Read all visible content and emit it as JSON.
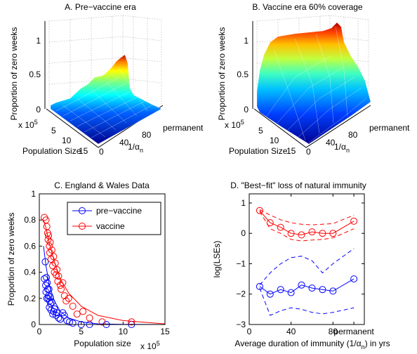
{
  "chart_data": [
    {
      "type": "surface",
      "title": "A. Pre−vaccine era",
      "zlabel": "Proportion of zero weeks",
      "xlabel": "Population Size",
      "xscale_label": "x 10",
      "xscale_exp": "5",
      "ylabel": "1/α",
      "ylabel_sub": "n",
      "ztick_labels": [
        "0",
        "0.5",
        "1"
      ],
      "xtick_labels": [
        "5",
        "10",
        "15"
      ],
      "ytick_labels": [
        "0",
        "40",
        "80",
        "permanent"
      ],
      "zlim": [
        0,
        1
      ],
      "x_range_1e5": [
        0.5,
        15
      ],
      "y_range": [
        0,
        100
      ],
      "surface_peak": 0.65,
      "colormap": "jet"
    },
    {
      "type": "surface",
      "title": "B. Vaccine era 60% coverage",
      "zlabel": "Proportion of zero weeks",
      "xlabel": "Population Size",
      "xscale_label": "x 10",
      "xscale_exp": "5",
      "ylabel": "1/α",
      "ylabel_sub": "n",
      "ztick_labels": [
        "0",
        "0.5",
        "1"
      ],
      "xtick_labels": [
        "5",
        "10",
        "15"
      ],
      "ytick_labels": [
        "0",
        "40",
        "80",
        "permanent"
      ],
      "zlim": [
        0,
        1
      ],
      "x_range_1e5": [
        0.5,
        15
      ],
      "y_range": [
        0,
        100
      ],
      "surface_peak": 1.0,
      "colormap": "jet"
    },
    {
      "type": "scatter",
      "title": "C. England & Wales Data",
      "xlabel": "Population size",
      "xscale_label": "x 10",
      "xscale_exp": "5",
      "ylabel": "Proportion of zero weeks",
      "xlim": [
        0,
        15
      ],
      "ylim": [
        0,
        1
      ],
      "xticks": [
        0,
        5,
        10,
        15
      ],
      "yticks": [
        0,
        0.2,
        0.4,
        0.6,
        0.8,
        1
      ],
      "legend_position": "top-right",
      "series": [
        {
          "name": "pre−vaccine",
          "color": "#0000ff",
          "points": [
            [
              0.6,
              0.35
            ],
            [
              0.7,
              0.48
            ],
            [
              0.75,
              0.3
            ],
            [
              0.8,
              0.25
            ],
            [
              0.85,
              0.36
            ],
            [
              0.9,
              0.2
            ],
            [
              0.95,
              0.32
            ],
            [
              1.0,
              0.27
            ],
            [
              1.05,
              0.2
            ],
            [
              1.1,
              0.22
            ],
            [
              1.15,
              0.27
            ],
            [
              1.2,
              0.13
            ],
            [
              1.25,
              0.18
            ],
            [
              1.3,
              0.21
            ],
            [
              1.35,
              0.16
            ],
            [
              1.4,
              0.11
            ],
            [
              1.5,
              0.17
            ],
            [
              1.6,
              0.08
            ],
            [
              1.7,
              0.1
            ],
            [
              1.8,
              0.12
            ],
            [
              2.0,
              0.07
            ],
            [
              2.1,
              0.09
            ],
            [
              2.3,
              0.05
            ],
            [
              2.5,
              0.04
            ],
            [
              2.8,
              0.09
            ],
            [
              3.0,
              0.07
            ],
            [
              3.3,
              0.03
            ],
            [
              3.6,
              0.02
            ],
            [
              4.0,
              0.01
            ],
            [
              5.0,
              0.0
            ],
            [
              6.0,
              0.0
            ],
            [
              8.0,
              0.0
            ],
            [
              11.0,
              0.0
            ]
          ],
          "fit": [
            [
              0.5,
              0.6
            ],
            [
              0.8,
              0.45
            ],
            [
              1.2,
              0.3
            ],
            [
              1.8,
              0.18
            ],
            [
              2.5,
              0.1
            ],
            [
              3.5,
              0.05
            ],
            [
              5,
              0.02
            ],
            [
              7,
              0.005
            ],
            [
              10,
              0.001
            ],
            [
              15,
              0.0
            ]
          ]
        },
        {
          "name": "vaccine",
          "color": "#ff0000",
          "points": [
            [
              0.6,
              0.82
            ],
            [
              0.8,
              0.8
            ],
            [
              0.9,
              0.75
            ],
            [
              1.0,
              0.7
            ],
            [
              1.05,
              0.65
            ],
            [
              1.1,
              0.68
            ],
            [
              1.2,
              0.6
            ],
            [
              1.25,
              0.55
            ],
            [
              1.3,
              0.63
            ],
            [
              1.4,
              0.5
            ],
            [
              1.5,
              0.57
            ],
            [
              1.6,
              0.45
            ],
            [
              1.7,
              0.52
            ],
            [
              1.8,
              0.4
            ],
            [
              1.9,
              0.47
            ],
            [
              2.0,
              0.38
            ],
            [
              2.1,
              0.42
            ],
            [
              2.2,
              0.33
            ],
            [
              2.3,
              0.37
            ],
            [
              2.5,
              0.3
            ],
            [
              2.6,
              0.27
            ],
            [
              2.8,
              0.32
            ],
            [
              3.0,
              0.22
            ],
            [
              3.2,
              0.18
            ],
            [
              3.5,
              0.2
            ],
            [
              4.0,
              0.14
            ],
            [
              4.5,
              0.08
            ],
            [
              5.2,
              0.1
            ],
            [
              6.0,
              0.05
            ],
            [
              7.5,
              0.02
            ],
            [
              11.0,
              0.02
            ]
          ],
          "fit": [
            [
              0.5,
              0.8
            ],
            [
              0.8,
              0.74
            ],
            [
              1.2,
              0.62
            ],
            [
              1.8,
              0.48
            ],
            [
              2.5,
              0.35
            ],
            [
              3.5,
              0.24
            ],
            [
              5,
              0.14
            ],
            [
              7,
              0.07
            ],
            [
              10,
              0.03
            ],
            [
              15,
              0.005
            ]
          ]
        }
      ]
    },
    {
      "type": "line",
      "title": "D. \"Best−fit\" loss of natural immunity",
      "xlabel": "Average duration of immunity (1/α",
      "xlabel_sub": "n",
      "xlabel_end": ") in yrs",
      "ylabel": "log(LSEs)",
      "xlim": [
        0,
        110
      ],
      "ylim": [
        -3,
        1.3
      ],
      "xticks": [
        0,
        40,
        80,
        100
      ],
      "xtick_labels": [
        "0",
        "40",
        "80",
        "permanent"
      ],
      "yticks": [
        -3,
        -2,
        -1,
        0,
        1
      ],
      "series": [
        {
          "name": "",
          "color": "#ff0000",
          "x": [
            10,
            20,
            30,
            40,
            50,
            60,
            70,
            80,
            100
          ],
          "values": [
            0.75,
            0.35,
            0.2,
            0.0,
            -0.05,
            0.05,
            0.0,
            0.0,
            0.4
          ],
          "upper": [
            0.78,
            0.6,
            0.45,
            0.35,
            0.3,
            0.28,
            0.3,
            0.32,
            0.6
          ],
          "lower": [
            0.72,
            0.15,
            0.0,
            -0.2,
            -0.25,
            -0.22,
            -0.2,
            -0.15,
            0.15
          ]
        },
        {
          "name": "",
          "color": "#0000ff",
          "x": [
            10,
            20,
            30,
            40,
            50,
            60,
            70,
            80,
            100
          ],
          "values": [
            -1.75,
            -2.0,
            -1.85,
            -1.95,
            -1.7,
            -1.8,
            -1.85,
            -1.9,
            -1.5
          ],
          "upper": [
            -1.7,
            -1.3,
            -1.0,
            -0.8,
            -0.75,
            -0.9,
            -1.3,
            -1.0,
            -0.5
          ],
          "lower": [
            -1.8,
            -2.7,
            -2.55,
            -2.45,
            -2.5,
            -2.6,
            -2.65,
            -2.6,
            -2.45
          ]
        }
      ]
    }
  ]
}
